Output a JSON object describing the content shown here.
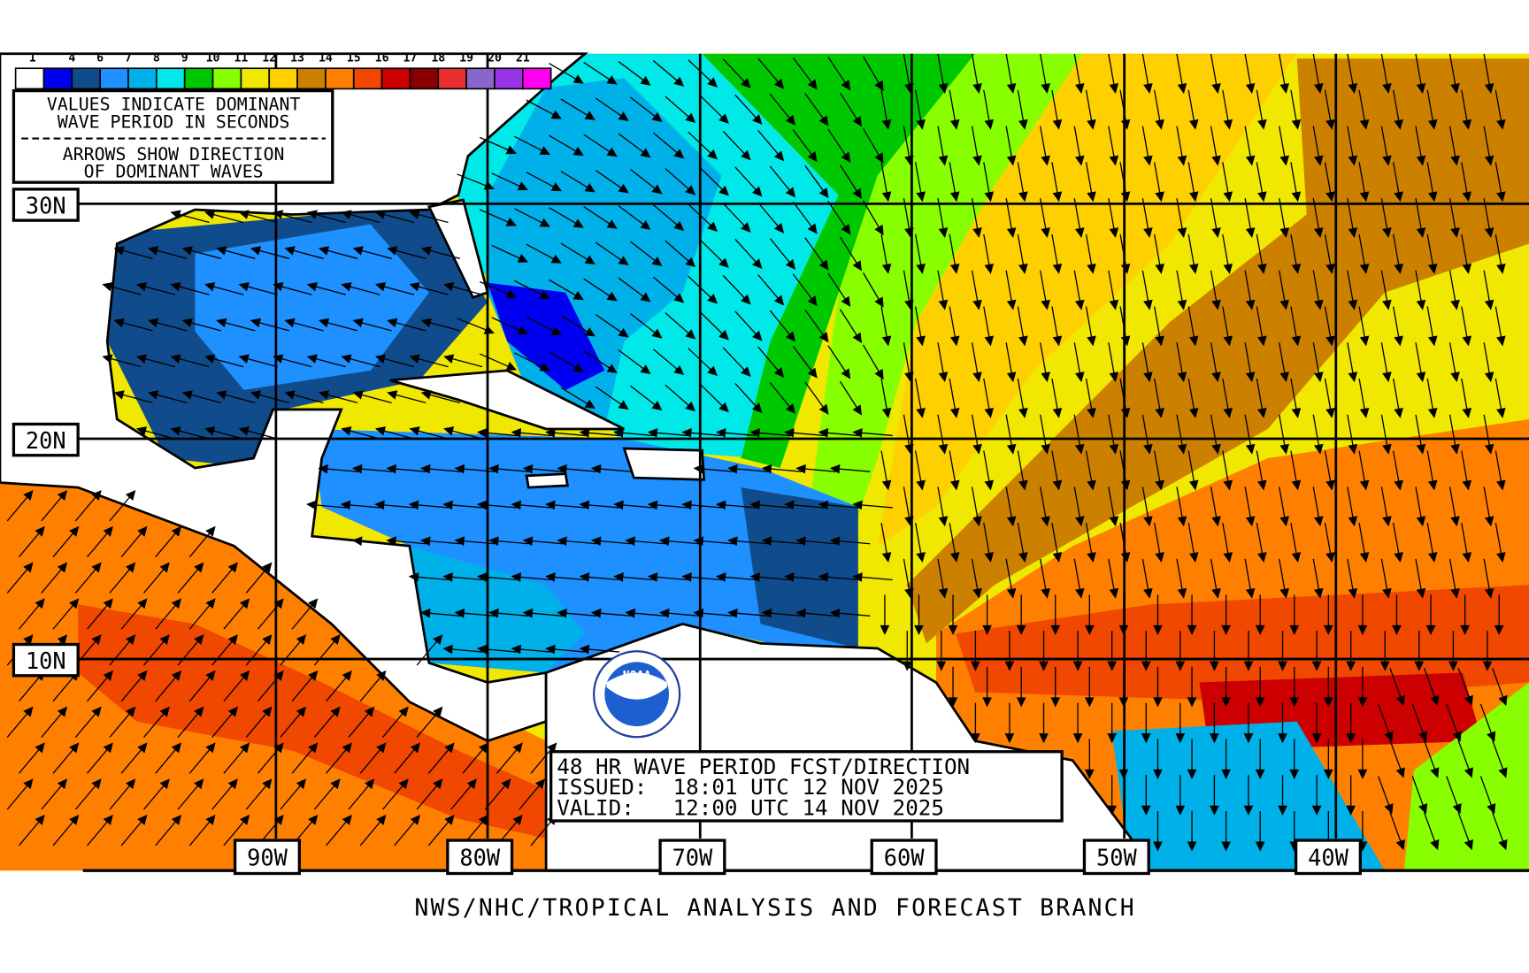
{
  "legend": {
    "labels": [
      "1",
      "4",
      "6",
      "7",
      "8",
      "9",
      "10",
      "11",
      "12",
      "13",
      "14",
      "15",
      "16",
      "17",
      "18",
      "19",
      "20",
      "21"
    ],
    "colors": [
      "#ffffff",
      "#0000f0",
      "#104c8c",
      "#1e90ff",
      "#00b0e8",
      "#00e8e8",
      "#00c800",
      "#88ff00",
      "#f0e800",
      "#ffd000",
      "#cc8000",
      "#ff8000",
      "#f04800",
      "#cc0000",
      "#880000",
      "#e83030",
      "#8866cc",
      "#9933e8",
      "#ff00f0"
    ],
    "note_line1": "VALUES INDICATE DOMINANT",
    "note_line2": "WAVE PERIOD IN SECONDS",
    "note_line3": "ARROWS SHOW DIRECTION",
    "note_line4": "OF DOMINANT WAVES"
  },
  "latitudes": [
    "30N",
    "20N",
    "10N"
  ],
  "longitudes": [
    "90W",
    "80W",
    "70W",
    "60W",
    "50W",
    "40W"
  ],
  "info": {
    "title": "48 HR WAVE PERIOD FCST/DIRECTION",
    "issued": "ISSUED:  18:01 UTC 12 NOV 2025",
    "valid": "VALID:   12:00 UTC 14 NOV 2025"
  },
  "logo": {
    "text": "NOAA"
  },
  "footer": "NWS/NHC/TROPICAL ANALYSIS AND FORECAST BRANCH"
}
